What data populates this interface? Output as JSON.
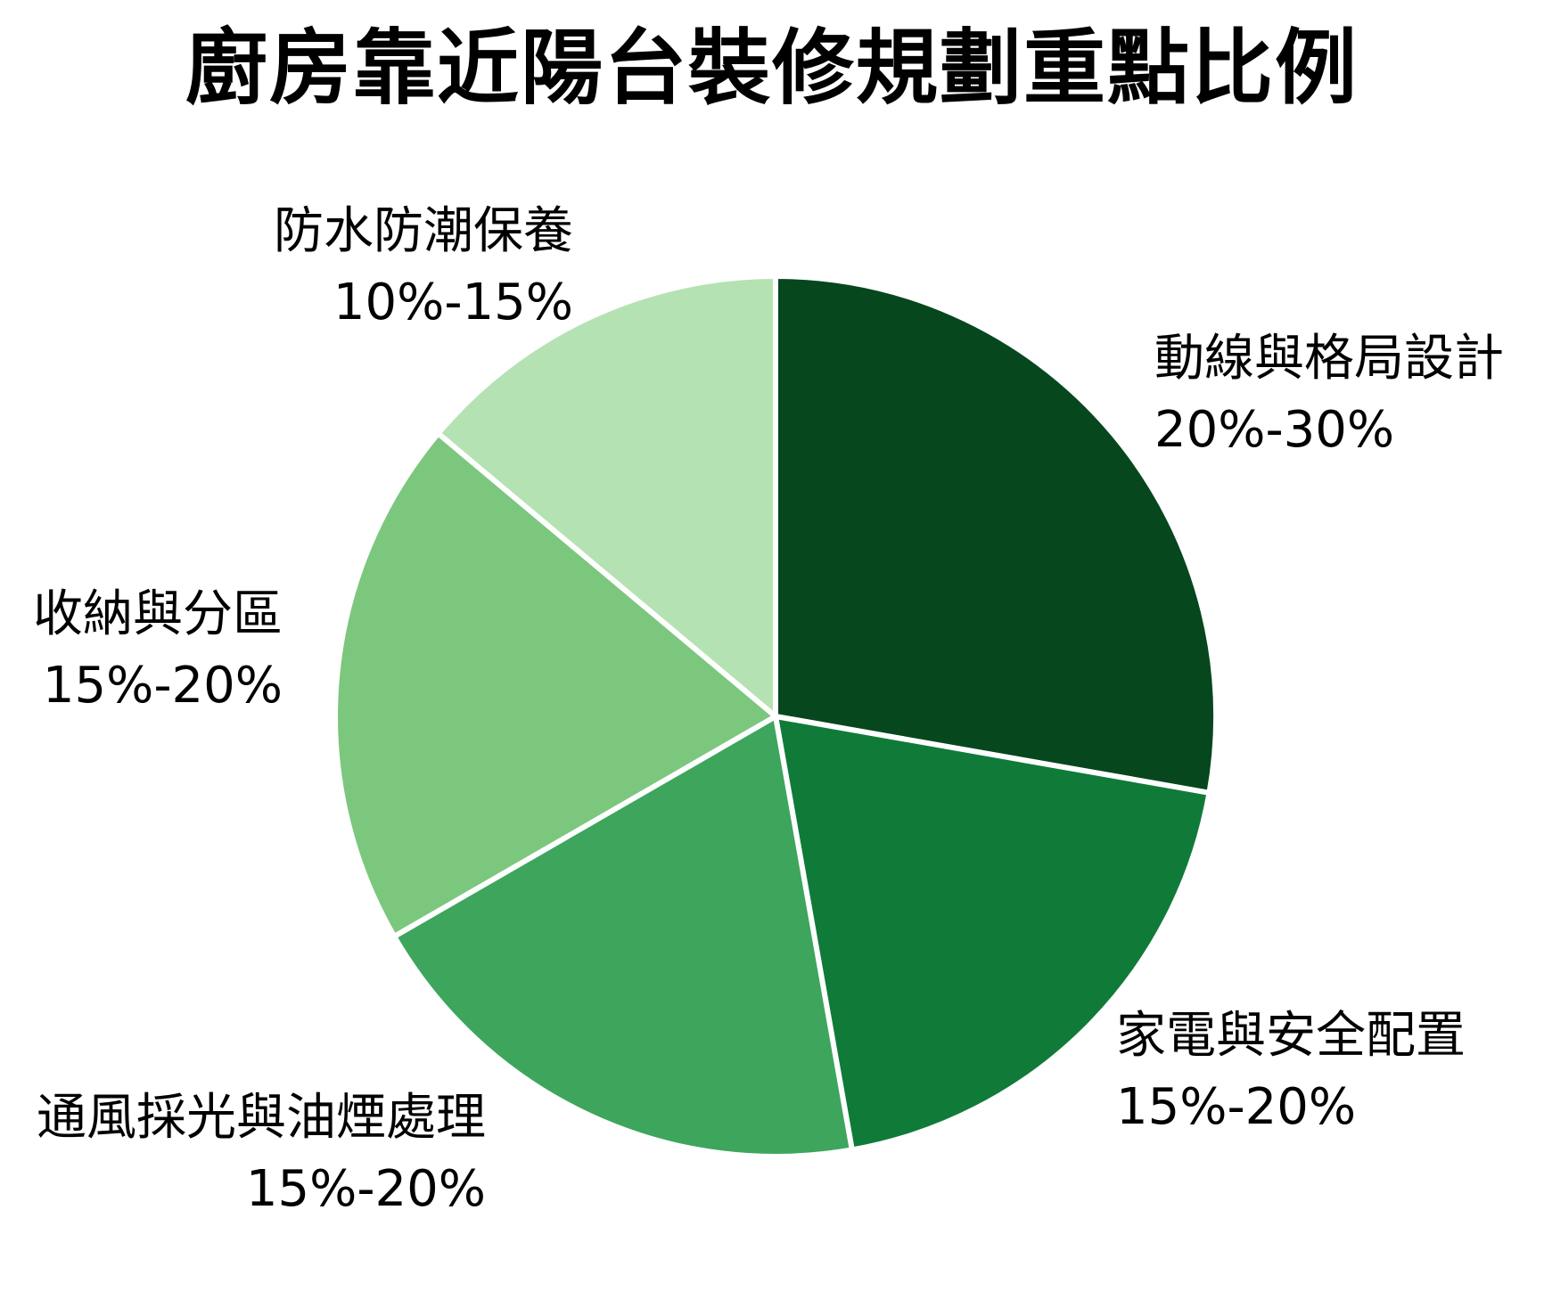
{
  "title": "廚房靠近陽台裝修規劃重點比例",
  "chart_data": {
    "type": "pie",
    "title": "廚房靠近陽台裝修規劃重點比例",
    "start_angle": "top (12 o'clock), clockwise",
    "legend_position": "none",
    "slice_border_color": "#ffffff",
    "slices": [
      {
        "label": "動線與格局設計",
        "range_label": "20%-30%",
        "value_pct_midpoint": 25,
        "color": "#06471e"
      },
      {
        "label": "家電與安全配置",
        "range_label": "15%-20%",
        "value_pct_midpoint": 17.5,
        "color": "#107b39"
      },
      {
        "label": "通風採光與油煙處理",
        "range_label": "15%-20%",
        "value_pct_midpoint": 17.5,
        "color": "#3ea55d"
      },
      {
        "label": "收納與分區",
        "range_label": "15%-20%",
        "value_pct_midpoint": 17.5,
        "color": "#7cc77e"
      },
      {
        "label": "防水防潮保養",
        "range_label": "10%-15%",
        "value_pct_midpoint": 12.5,
        "color": "#b5e2b3"
      }
    ]
  }
}
